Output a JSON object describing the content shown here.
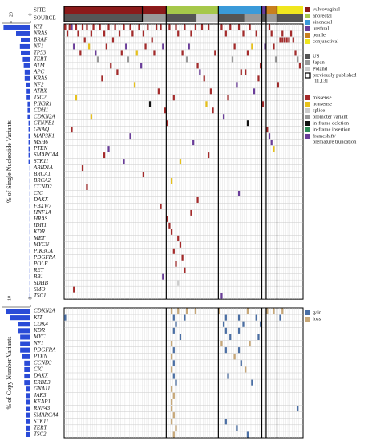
{
  "header": {
    "site_label": "SITE",
    "source_label": "SOURCE",
    "samples": [
      {
        "site": 0,
        "count": 47
      },
      {
        "site": 1,
        "count": 24
      },
      {
        "site": 2,
        "count": 20
      },
      {
        "site": 3,
        "count": 2
      },
      {
        "site": 4,
        "count": 5
      },
      {
        "site": 5,
        "count": 12
      }
    ],
    "source_segments": [
      [
        0,
        36,
        0
      ],
      [
        36,
        11,
        1
      ],
      [
        47,
        14,
        0
      ],
      [
        61,
        10,
        2
      ],
      [
        71,
        12,
        0
      ],
      [
        83,
        8,
        1
      ],
      [
        91,
        2,
        0
      ],
      [
        93,
        5,
        1
      ],
      [
        98,
        12,
        0
      ]
    ],
    "published_range": [
      0,
      36
    ]
  },
  "legend": {
    "sites": [
      {
        "label": "vulvovaginal",
        "color": "#8b1a1a"
      },
      {
        "label": "anorectal",
        "color": "#a6c84a"
      },
      {
        "label": "sinonasal",
        "color": "#3a9ad9"
      },
      {
        "label": "urethral",
        "color": "#6a3d9a"
      },
      {
        "label": "penile",
        "color": "#c87f1e"
      },
      {
        "label": "conjunctival",
        "color": "#f0e61e"
      }
    ],
    "sources": [
      {
        "label_lines": [
          "US"
        ],
        "color": "#555555"
      },
      {
        "label_lines": [
          "Japan"
        ],
        "color": "#999999"
      },
      {
        "label_lines": [
          "Poland"
        ],
        "color": "#cccccc"
      },
      {
        "label_lines": [
          "previously published",
          "[11,13]"
        ],
        "color": "none"
      }
    ],
    "variants": [
      {
        "label_lines": [
          "missense"
        ],
        "color": "#a52a2a"
      },
      {
        "label_lines": [
          "nonsense"
        ],
        "color": "#e8c21a"
      },
      {
        "label_lines": [
          "splice"
        ],
        "color": "#cccccc"
      },
      {
        "label_lines": [
          "promoter variant"
        ],
        "color": "#999999"
      },
      {
        "label_lines": [
          "in-frame deletion"
        ],
        "color": "#111111"
      },
      {
        "label_lines": [
          "in-frame insertion"
        ],
        "color": "#2e8b57"
      },
      {
        "label_lines": [
          "frameshift/",
          "premature truncation"
        ],
        "color": "#6a3d9a"
      }
    ],
    "cnv": [
      {
        "label_lines": [
          "gain"
        ],
        "color": "#4a6fa5"
      },
      {
        "label_lines": [
          "loss"
        ],
        "color": "#c8a878"
      }
    ]
  },
  "snv_panel": {
    "axis_label": "% of Single Nucleotide Variants",
    "xlim": [
      0,
      30
    ],
    "xticks": [
      0,
      20
    ],
    "bar_color": "#2a4bd7",
    "rows": [
      {
        "gene": "KIT",
        "percent": 28,
        "mutations": [
          [
            0,
            0
          ],
          [
            2,
            0
          ],
          [
            3,
            6
          ],
          [
            5,
            0
          ],
          [
            8,
            0
          ],
          [
            10,
            0
          ],
          [
            13,
            0
          ],
          [
            16,
            0
          ],
          [
            20,
            0
          ],
          [
            23,
            0
          ],
          [
            27,
            0
          ],
          [
            30,
            0
          ],
          [
            34,
            0
          ],
          [
            38,
            0
          ],
          [
            42,
            0
          ],
          [
            44,
            0
          ],
          [
            48,
            0
          ],
          [
            51,
            0
          ],
          [
            55,
            0
          ],
          [
            60,
            0
          ],
          [
            63,
            0
          ],
          [
            66,
            0
          ],
          [
            72,
            0
          ],
          [
            76,
            0
          ],
          [
            80,
            0
          ],
          [
            85,
            0
          ],
          [
            94,
            0
          ]
        ]
      },
      {
        "gene": "NRAS",
        "percent": 15,
        "mutations": [
          [
            1,
            0
          ],
          [
            6,
            0
          ],
          [
            12,
            0
          ],
          [
            18,
            0
          ],
          [
            25,
            0
          ],
          [
            31,
            0
          ],
          [
            36,
            0
          ],
          [
            52,
            0
          ],
          [
            58,
            0
          ],
          [
            74,
            0
          ],
          [
            82,
            0
          ],
          [
            88,
            0
          ],
          [
            95,
            0
          ],
          [
            100,
            0
          ],
          [
            104,
            0
          ]
        ]
      },
      {
        "gene": "BRAF",
        "percent": 10,
        "mutations": [
          [
            9,
            0
          ],
          [
            22,
            0
          ],
          [
            40,
            0
          ],
          [
            99,
            0
          ],
          [
            100,
            0
          ],
          [
            101,
            0
          ],
          [
            102,
            0
          ],
          [
            103,
            0
          ],
          [
            105,
            0
          ]
        ]
      },
      {
        "gene": "NF1",
        "percent": 11,
        "mutations": [
          [
            4,
            6
          ],
          [
            11,
            1
          ],
          [
            19,
            0
          ],
          [
            28,
            6
          ],
          [
            37,
            0
          ],
          [
            45,
            6
          ],
          [
            57,
            6
          ],
          [
            78,
            0
          ],
          [
            86,
            1
          ],
          [
            92,
            6
          ],
          [
            96,
            0
          ]
        ]
      },
      {
        "gene": "TP53",
        "percent": 10,
        "mutations": [
          [
            7,
            0
          ],
          [
            14,
            6
          ],
          [
            26,
            0
          ],
          [
            33,
            1
          ],
          [
            41,
            0
          ],
          [
            54,
            0
          ],
          [
            69,
            0
          ],
          [
            84,
            0
          ],
          [
            106,
            0
          ]
        ]
      },
      {
        "gene": "TERT",
        "percent": 8,
        "mutations": [
          [
            15,
            3
          ],
          [
            29,
            3
          ],
          [
            56,
            3
          ],
          [
            77,
            3
          ],
          [
            97,
            3
          ],
          [
            107,
            3
          ]
        ]
      },
      {
        "gene": "ATM",
        "percent": 7,
        "mutations": [
          [
            21,
            0
          ],
          [
            35,
            6
          ],
          [
            61,
            0
          ],
          [
            90,
            0
          ],
          [
            108,
            0
          ]
        ]
      },
      {
        "gene": "APC",
        "percent": 6,
        "mutations": [
          [
            24,
            0
          ],
          [
            62,
            6
          ],
          [
            81,
            0
          ],
          [
            83,
            0
          ]
        ]
      },
      {
        "gene": "KRAS",
        "percent": 6,
        "mutations": [
          [
            17,
            0
          ],
          [
            64,
            0
          ],
          [
            89,
            0
          ]
        ]
      },
      {
        "gene": "NF2",
        "percent": 5,
        "mutations": [
          [
            32,
            1
          ],
          [
            79,
            6
          ],
          [
            98,
            0
          ]
        ]
      },
      {
        "gene": "ATRX",
        "percent": 4,
        "mutations": [
          [
            43,
            0
          ],
          [
            67,
            0
          ],
          [
            87,
            6
          ]
        ]
      },
      {
        "gene": "TSC2",
        "percent": 4,
        "mutations": [
          [
            5,
            1
          ],
          [
            50,
            0
          ],
          [
            75,
            0
          ]
        ]
      },
      {
        "gene": "PIK3R1",
        "percent": 3,
        "mutations": [
          [
            39,
            4
          ],
          [
            65,
            1
          ],
          [
            91,
            0
          ]
        ]
      },
      {
        "gene": "CDH1",
        "percent": 3,
        "mutations": [
          [
            46,
            0
          ],
          [
            68,
            0
          ]
        ]
      },
      {
        "gene": "CDKN2A",
        "percent": 3,
        "mutations": [
          [
            12,
            1
          ],
          [
            73,
            6
          ]
        ]
      },
      {
        "gene": "CTNNB1",
        "percent": 2,
        "mutations": [
          [
            47,
            0
          ],
          [
            84,
            4
          ]
        ]
      },
      {
        "gene": "GNAQ",
        "percent": 2,
        "mutations": [
          [
            3,
            0
          ],
          [
            93,
            0
          ]
        ]
      },
      {
        "gene": "MAP3K1",
        "percent": 2,
        "mutations": [
          [
            30,
            6
          ],
          [
            94,
            6
          ]
        ]
      },
      {
        "gene": "MSH6",
        "percent": 2,
        "mutations": [
          [
            59,
            6
          ],
          [
            95,
            6
          ]
        ]
      },
      {
        "gene": "PTEN",
        "percent": 2,
        "mutations": [
          [
            20,
            6
          ],
          [
            96,
            1
          ]
        ]
      },
      {
        "gene": "SMARCA4",
        "percent": 2,
        "mutations": [
          [
            18,
            0
          ],
          [
            66,
            0
          ]
        ]
      },
      {
        "gene": "STK11",
        "percent": 2,
        "mutations": [
          [
            27,
            6
          ],
          [
            53,
            1
          ]
        ]
      },
      {
        "gene": "ARID1A",
        "percent": 1,
        "mutations": [
          [
            8,
            0
          ]
        ]
      },
      {
        "gene": "BRCA1",
        "percent": 1,
        "mutations": [
          [
            36,
            0
          ]
        ]
      },
      {
        "gene": "BRCA2",
        "percent": 1,
        "mutations": [
          [
            49,
            1
          ]
        ]
      },
      {
        "gene": "CCND2",
        "percent": 1,
        "mutations": [
          [
            10,
            0
          ]
        ]
      },
      {
        "gene": "CIC",
        "percent": 1,
        "mutations": [
          [
            80,
            6
          ]
        ]
      },
      {
        "gene": "DAXX",
        "percent": 1,
        "mutations": [
          [
            61,
            0
          ]
        ]
      },
      {
        "gene": "FBXW7",
        "percent": 1,
        "mutations": [
          [
            44,
            0
          ]
        ]
      },
      {
        "gene": "HNF1A",
        "percent": 1,
        "mutations": [
          [
            58,
            0
          ]
        ]
      },
      {
        "gene": "HRAS",
        "percent": 1,
        "mutations": [
          [
            47,
            0
          ]
        ]
      },
      {
        "gene": "IDH1",
        "percent": 1,
        "mutations": [
          [
            48,
            0
          ]
        ]
      },
      {
        "gene": "KDR",
        "percent": 1,
        "mutations": [
          [
            49,
            0
          ]
        ]
      },
      {
        "gene": "MET",
        "percent": 1,
        "mutations": [
          [
            52,
            0
          ]
        ]
      },
      {
        "gene": "MYCN",
        "percent": 1,
        "mutations": [
          [
            53,
            0
          ]
        ]
      },
      {
        "gene": "PIK3CA",
        "percent": 1,
        "mutations": [
          [
            50,
            0
          ]
        ]
      },
      {
        "gene": "PDGFRA",
        "percent": 1,
        "mutations": [
          [
            54,
            0
          ]
        ]
      },
      {
        "gene": "POLE",
        "percent": 1,
        "mutations": [
          [
            51,
            0
          ]
        ]
      },
      {
        "gene": "RET",
        "percent": 1,
        "mutations": [
          [
            55,
            0
          ]
        ]
      },
      {
        "gene": "RB1",
        "percent": 1,
        "mutations": [
          [
            45,
            6
          ]
        ]
      },
      {
        "gene": "SDHB",
        "percent": 1,
        "mutations": [
          [
            52,
            2
          ]
        ]
      },
      {
        "gene": "SMO",
        "percent": 1,
        "mutations": [
          [
            4,
            0
          ]
        ]
      },
      {
        "gene": "TSC1",
        "percent": 1,
        "mutations": [
          [
            72,
            6
          ]
        ]
      }
    ]
  },
  "cnv_panel": {
    "axis_label": "% of Copy Number Variants",
    "xlim": [
      0,
      14
    ],
    "xticks": [
      0,
      10
    ],
    "bar_color": "#2a4bd7",
    "rows": [
      {
        "gene": "CDKN2A",
        "percent": 12,
        "mutations": [
          [
            49,
            1
          ],
          [
            52,
            1
          ],
          [
            56,
            1
          ],
          [
            60,
            1
          ],
          [
            71,
            1
          ],
          [
            84,
            1
          ],
          [
            93,
            1
          ],
          [
            96,
            1
          ],
          [
            100,
            1
          ]
        ]
      },
      {
        "gene": "KIT",
        "percent": 10,
        "mutations": [
          [
            0,
            0
          ],
          [
            50,
            0
          ],
          [
            55,
            0
          ],
          [
            74,
            0
          ],
          [
            80,
            0
          ],
          [
            88,
            0
          ],
          [
            99,
            0
          ]
        ]
      },
      {
        "gene": "CDK4",
        "percent": 6,
        "mutations": [
          [
            51,
            0
          ],
          [
            73,
            0
          ],
          [
            82,
            0
          ],
          [
            90,
            0
          ]
        ]
      },
      {
        "gene": "KDR",
        "percent": 6,
        "mutations": [
          [
            50,
            0
          ],
          [
            74,
            0
          ],
          [
            80,
            0
          ]
        ]
      },
      {
        "gene": "MYC",
        "percent": 5,
        "mutations": [
          [
            53,
            0
          ],
          [
            76,
            0
          ],
          [
            89,
            0
          ]
        ]
      },
      {
        "gene": "NF1",
        "percent": 5,
        "mutations": [
          [
            49,
            1
          ],
          [
            72,
            1
          ],
          [
            85,
            1
          ]
        ]
      },
      {
        "gene": "PDGFRA",
        "percent": 5,
        "mutations": [
          [
            50,
            0
          ],
          [
            74,
            0
          ],
          [
            80,
            0
          ]
        ]
      },
      {
        "gene": "PTEN",
        "percent": 4,
        "mutations": [
          [
            49,
            1
          ],
          [
            78,
            1
          ]
        ]
      },
      {
        "gene": "CCND3",
        "percent": 3,
        "mutations": [
          [
            50,
            0
          ],
          [
            81,
            0
          ]
        ]
      },
      {
        "gene": "CIC",
        "percent": 3,
        "mutations": [
          [
            49,
            1
          ],
          [
            83,
            1
          ]
        ]
      },
      {
        "gene": "DAXX",
        "percent": 3,
        "mutations": [
          [
            50,
            0
          ],
          [
            75,
            0
          ]
        ]
      },
      {
        "gene": "ERBB3",
        "percent": 3,
        "mutations": [
          [
            51,
            0
          ],
          [
            86,
            0
          ]
        ]
      },
      {
        "gene": "GNA11",
        "percent": 2,
        "mutations": [
          [
            49,
            1
          ]
        ]
      },
      {
        "gene": "JAK3",
        "percent": 2,
        "mutations": [
          [
            50,
            1
          ]
        ]
      },
      {
        "gene": "KEAP1",
        "percent": 2,
        "mutations": [
          [
            49,
            1
          ]
        ]
      },
      {
        "gene": "RNF43",
        "percent": 2,
        "mutations": [
          [
            49,
            1
          ],
          [
            107,
            0
          ]
        ]
      },
      {
        "gene": "SMARCA4",
        "percent": 2,
        "mutations": [
          [
            50,
            1
          ]
        ]
      },
      {
        "gene": "STK11",
        "percent": 2,
        "mutations": [
          [
            49,
            1
          ],
          [
            74,
            0
          ]
        ]
      },
      {
        "gene": "TERT",
        "percent": 2,
        "mutations": [
          [
            51,
            1
          ],
          [
            79,
            0
          ]
        ]
      },
      {
        "gene": "TSC2",
        "percent": 2,
        "mutations": [
          [
            50,
            1
          ],
          [
            84,
            0
          ]
        ]
      }
    ]
  }
}
